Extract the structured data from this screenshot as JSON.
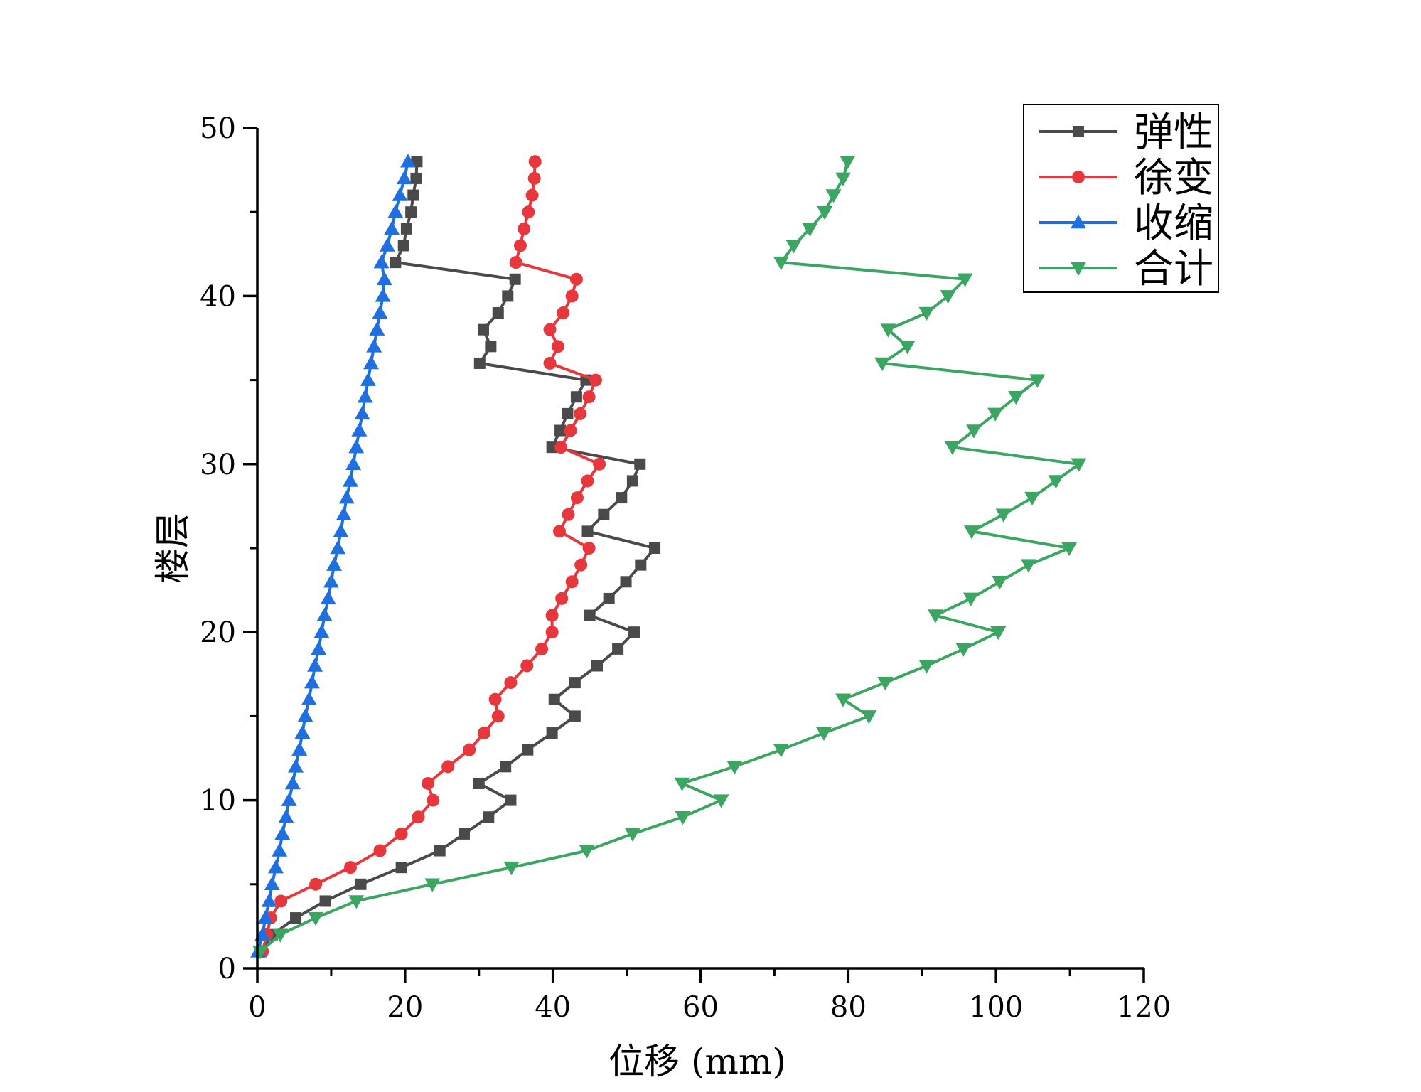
{
  "chart_data": {
    "type": "line",
    "xlabel": "位移 (mm)",
    "ylabel": "楼层",
    "xlim": [
      0,
      120
    ],
    "ylim": [
      0,
      50
    ],
    "x_ticks": [
      "0",
      "20",
      "40",
      "60",
      "80",
      "100",
      "120"
    ],
    "y_ticks": [
      "0",
      "10",
      "20",
      "30",
      "40",
      "50"
    ],
    "grid": false,
    "legend_position": "top-right",
    "series": [
      {
        "name": "弹性",
        "color": "#4a4a4a",
        "marker": "square",
        "y": [
          1,
          2,
          3,
          4,
          5,
          6,
          7,
          8,
          9,
          10,
          11,
          12,
          13,
          14,
          15,
          16,
          17,
          18,
          19,
          20,
          21,
          22,
          23,
          24,
          25,
          26,
          27,
          28,
          29,
          30,
          31,
          32,
          33,
          34,
          35,
          36,
          37,
          38,
          39,
          40,
          41,
          42,
          43,
          44,
          45,
          46,
          47,
          48
        ],
        "x": [
          0.5,
          2.0,
          5.2,
          9.2,
          14.0,
          19.5,
          24.7,
          28.0,
          31.3,
          34.3,
          30.0,
          33.6,
          36.6,
          39.9,
          43.0,
          40.2,
          43.0,
          46.0,
          48.8,
          51.0,
          45.0,
          47.6,
          49.9,
          51.9,
          53.8,
          44.7,
          46.9,
          49.3,
          50.8,
          51.8,
          39.9,
          41.0,
          42.0,
          43.2,
          44.5,
          30.1,
          31.6,
          30.6,
          32.6,
          33.9,
          34.9,
          18.7,
          19.8,
          20.2,
          20.8,
          21.1,
          21.5,
          21.6
        ]
      },
      {
        "name": "徐变",
        "color": "#e8373c",
        "marker": "circle",
        "y": [
          1,
          2,
          3,
          4,
          5,
          6,
          7,
          8,
          9,
          10,
          11,
          12,
          13,
          14,
          15,
          16,
          17,
          18,
          19,
          20,
          21,
          22,
          23,
          24,
          25,
          26,
          27,
          28,
          29,
          30,
          31,
          32,
          33,
          34,
          35,
          36,
          37,
          38,
          39,
          40,
          41,
          42,
          43,
          44,
          45,
          46,
          47,
          48
        ],
        "x": [
          0.7,
          1.3,
          1.8,
          3.2,
          7.9,
          12.6,
          16.6,
          19.5,
          21.8,
          23.8,
          23.1,
          25.8,
          28.7,
          30.7,
          32.6,
          32.2,
          34.3,
          36.5,
          38.5,
          39.9,
          39.9,
          41.2,
          42.6,
          43.8,
          44.9,
          40.9,
          42.1,
          43.3,
          44.7,
          46.3,
          41.1,
          42.4,
          43.7,
          44.9,
          45.8,
          39.6,
          40.7,
          39.6,
          41.4,
          42.6,
          43.2,
          35.0,
          35.6,
          36.1,
          36.7,
          37.2,
          37.5,
          37.6
        ]
      },
      {
        "name": "收缩",
        "color": "#1f6fe0",
        "marker": "triangle-up",
        "y": [
          1,
          2,
          3,
          4,
          5,
          6,
          7,
          8,
          9,
          10,
          11,
          12,
          13,
          14,
          15,
          16,
          17,
          18,
          19,
          20,
          21,
          22,
          23,
          24,
          25,
          26,
          27,
          28,
          29,
          30,
          31,
          32,
          33,
          34,
          35,
          36,
          37,
          38,
          39,
          40,
          41,
          42,
          43,
          44,
          45,
          46,
          47,
          48
        ],
        "x": [
          0.1,
          0.7,
          1.1,
          1.6,
          2.0,
          2.5,
          3.0,
          3.4,
          3.9,
          4.3,
          4.8,
          5.2,
          5.7,
          6.1,
          6.5,
          7.0,
          7.4,
          7.8,
          8.3,
          8.7,
          9.1,
          9.6,
          10.0,
          10.4,
          10.9,
          11.3,
          11.7,
          12.1,
          12.6,
          13.0,
          13.4,
          13.8,
          14.2,
          14.6,
          15.0,
          15.4,
          15.8,
          16.2,
          16.6,
          17.0,
          17.2,
          16.8,
          17.6,
          18.2,
          18.7,
          19.3,
          19.9,
          20.4
        ]
      },
      {
        "name": "合计",
        "color": "#3aa662",
        "marker": "triangle-down",
        "y": [
          1,
          2,
          3,
          4,
          5,
          6,
          7,
          8,
          9,
          10,
          11,
          12,
          13,
          14,
          15,
          16,
          17,
          18,
          19,
          20,
          21,
          22,
          23,
          24,
          25,
          26,
          27,
          28,
          29,
          30,
          31,
          32,
          33,
          34,
          35,
          36,
          37,
          38,
          39,
          40,
          41,
          42,
          43,
          44,
          45,
          46,
          47,
          48
        ],
        "x": [
          0.4,
          3.1,
          7.9,
          13.4,
          23.7,
          34.4,
          44.6,
          50.8,
          57.6,
          62.8,
          57.5,
          64.6,
          70.9,
          76.7,
          82.8,
          79.3,
          85.0,
          90.6,
          95.6,
          100.3,
          91.8,
          96.6,
          100.5,
          104.4,
          109.9,
          96.7,
          101.0,
          104.9,
          108.1,
          111.2,
          94.1,
          97.0,
          99.9,
          102.7,
          105.6,
          84.6,
          88.0,
          85.4,
          90.6,
          93.5,
          95.8,
          70.9,
          72.6,
          74.8,
          76.8,
          78.0,
          79.3,
          79.9
        ]
      }
    ]
  }
}
